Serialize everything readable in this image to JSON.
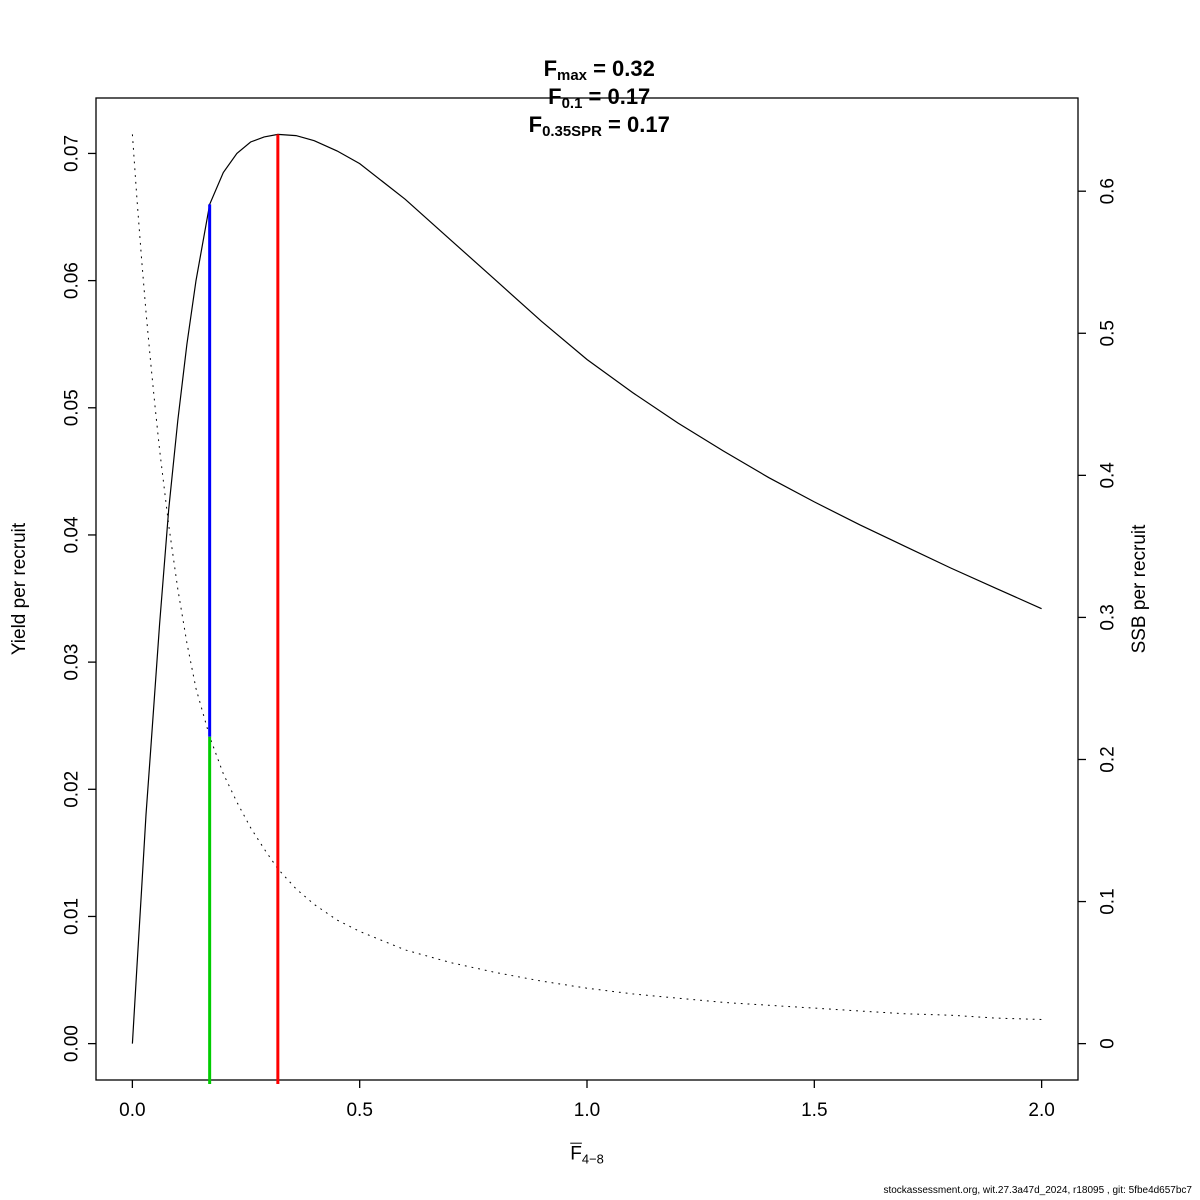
{
  "page": {
    "footer": "stockassessment.org, wit.27.3a47d_2024, r18095 , git: 5fbe4d657bc7"
  },
  "title": {
    "segments": [
      {
        "base": "F",
        "sub": "max",
        "value": " = 0.32"
      },
      {
        "base": "F",
        "sub": "0.1",
        "value": " = 0.17"
      },
      {
        "base": "F",
        "sub": "0.35SPR",
        "value": " = 0.17"
      }
    ]
  },
  "chart_data": {
    "type": "line",
    "title": "Fmax = 0.32  F0.1 = 0.17  F0.35SPR = 0.17",
    "reference_points": {
      "F_max": 0.32,
      "F_0.1": 0.17,
      "F_0.35SPR": 0.17
    },
    "x_axis": {
      "label_base": "F",
      "label_sub": "4−8",
      "range": [
        0,
        2
      ],
      "tick_values": [
        0.0,
        0.5,
        1.0,
        1.5,
        2.0
      ],
      "tick_labels": [
        "0.0",
        "0.5",
        "1.0",
        "1.5",
        "2.0"
      ]
    },
    "y_left": {
      "label": "Yield per recruit",
      "range": [
        0,
        0.0715
      ],
      "tick_values": [
        0.0,
        0.01,
        0.02,
        0.03,
        0.04,
        0.05,
        0.06,
        0.07
      ],
      "tick_labels": [
        "0.00",
        "0.01",
        "0.02",
        "0.03",
        "0.04",
        "0.05",
        "0.06",
        "0.07"
      ]
    },
    "y_right": {
      "label": "SSB per recruit",
      "range": [
        0,
        0.64
      ],
      "tick_values": [
        0,
        0.1,
        0.2,
        0.3,
        0.4,
        0.5,
        0.6
      ],
      "tick_labels": [
        "0",
        "0.1",
        "0.2",
        "0.3",
        "0.4",
        "0.5",
        "0.6"
      ]
    },
    "grid": false,
    "legend": "none",
    "series": [
      {
        "name": "yield-per-recruit",
        "axis": "left",
        "style": "solid",
        "color": "#000000",
        "x": [
          0,
          0.01,
          0.02,
          0.03,
          0.04,
          0.05,
          0.06,
          0.08,
          0.1,
          0.12,
          0.14,
          0.17,
          0.2,
          0.23,
          0.26,
          0.29,
          0.32,
          0.36,
          0.4,
          0.45,
          0.5,
          0.6,
          0.7,
          0.8,
          0.9,
          1.0,
          1.1,
          1.2,
          1.3,
          1.4,
          1.5,
          1.6,
          1.7,
          1.8,
          1.9,
          2.0
        ],
        "y": [
          0,
          0.006,
          0.012,
          0.018,
          0.023,
          0.028,
          0.033,
          0.042,
          0.049,
          0.055,
          0.06,
          0.066,
          0.0685,
          0.07,
          0.0709,
          0.0713,
          0.0715,
          0.0714,
          0.071,
          0.0702,
          0.0692,
          0.0664,
          0.0632,
          0.06,
          0.0568,
          0.0538,
          0.0512,
          0.0488,
          0.0466,
          0.0445,
          0.0426,
          0.0408,
          0.0391,
          0.0374,
          0.0358,
          0.0342
        ]
      },
      {
        "name": "ssb-per-recruit",
        "axis": "right",
        "style": "dotted",
        "color": "#000000",
        "x": [
          0,
          0.01,
          0.02,
          0.03,
          0.04,
          0.05,
          0.06,
          0.08,
          0.1,
          0.12,
          0.14,
          0.17,
          0.2,
          0.23,
          0.26,
          0.29,
          0.32,
          0.36,
          0.4,
          0.45,
          0.5,
          0.6,
          0.7,
          0.8,
          0.9,
          1.0,
          1.1,
          1.2,
          1.3,
          1.4,
          1.5,
          1.6,
          1.7,
          1.8,
          1.9,
          2.0
        ],
        "y": [
          0.64,
          0.595,
          0.553,
          0.515,
          0.48,
          0.448,
          0.418,
          0.365,
          0.32,
          0.282,
          0.25,
          0.216,
          0.19,
          0.17,
          0.152,
          0.137,
          0.123,
          0.109,
          0.098,
          0.087,
          0.079,
          0.066,
          0.057,
          0.05,
          0.044,
          0.039,
          0.035,
          0.032,
          0.029,
          0.027,
          0.025,
          0.023,
          0.021,
          0.02,
          0.018,
          0.017
        ]
      }
    ],
    "reference_lines": [
      {
        "name": "f-max",
        "x": 0.32,
        "color": "#FF0000",
        "top_value": 0.0715,
        "top_axis": "left",
        "bottom": "floor"
      },
      {
        "name": "f-0.1",
        "x": 0.17,
        "color": "#0000FF",
        "top_value": 0.066,
        "top_axis": "left",
        "bottom_value": 0.216,
        "bottom_axis": "right"
      },
      {
        "name": "f-0.35spr",
        "x": 0.17,
        "color": "#00CC00",
        "top_value": 0.216,
        "top_axis": "right",
        "bottom": "floor"
      }
    ]
  }
}
